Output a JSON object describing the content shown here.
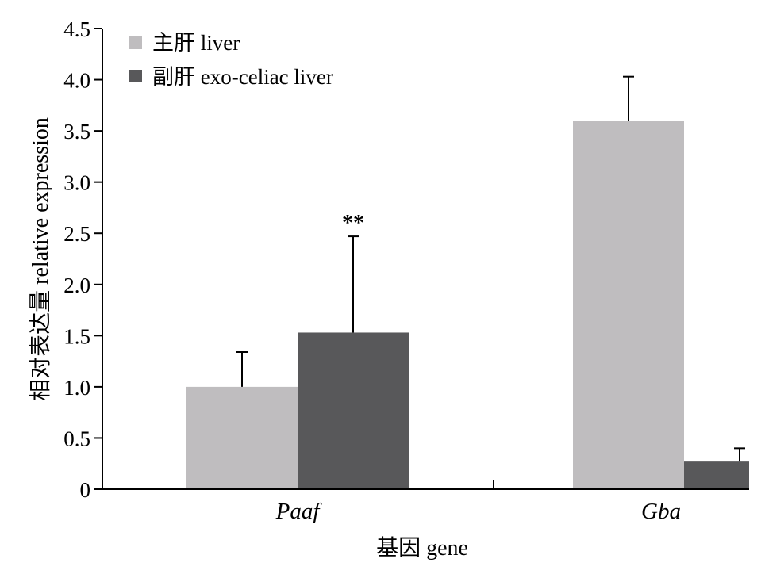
{
  "chart_data": {
    "type": "bar",
    "categories": [
      "Paaf",
      "Gba"
    ],
    "series": [
      {
        "name": "主肝 liver",
        "color": "#bfbdbf",
        "values": [
          1.0,
          3.6
        ],
        "errors": [
          0.34,
          0.43
        ]
      },
      {
        "name": "副肝 exo-celiac liver",
        "color": "#58585a",
        "values": [
          1.53,
          0.27
        ],
        "errors": [
          0.94,
          0.13
        ]
      }
    ],
    "annotations": [
      {
        "category": "Paaf",
        "series": 1,
        "text": "**"
      }
    ],
    "xlabel": "基因 gene",
    "ylabel": "相对表达量 relative expression",
    "ylim": [
      0,
      4.5
    ],
    "yticks": [
      0,
      0.5,
      1.0,
      1.5,
      2.0,
      2.5,
      3.0,
      3.5,
      4.0,
      4.5
    ],
    "ytick_labels": [
      "0",
      "0.5",
      "1.0",
      "1.5",
      "2.0",
      "2.5",
      "3.0",
      "3.5",
      "4.0",
      "4.5"
    ],
    "grid": false,
    "legend_position": "top-left"
  }
}
